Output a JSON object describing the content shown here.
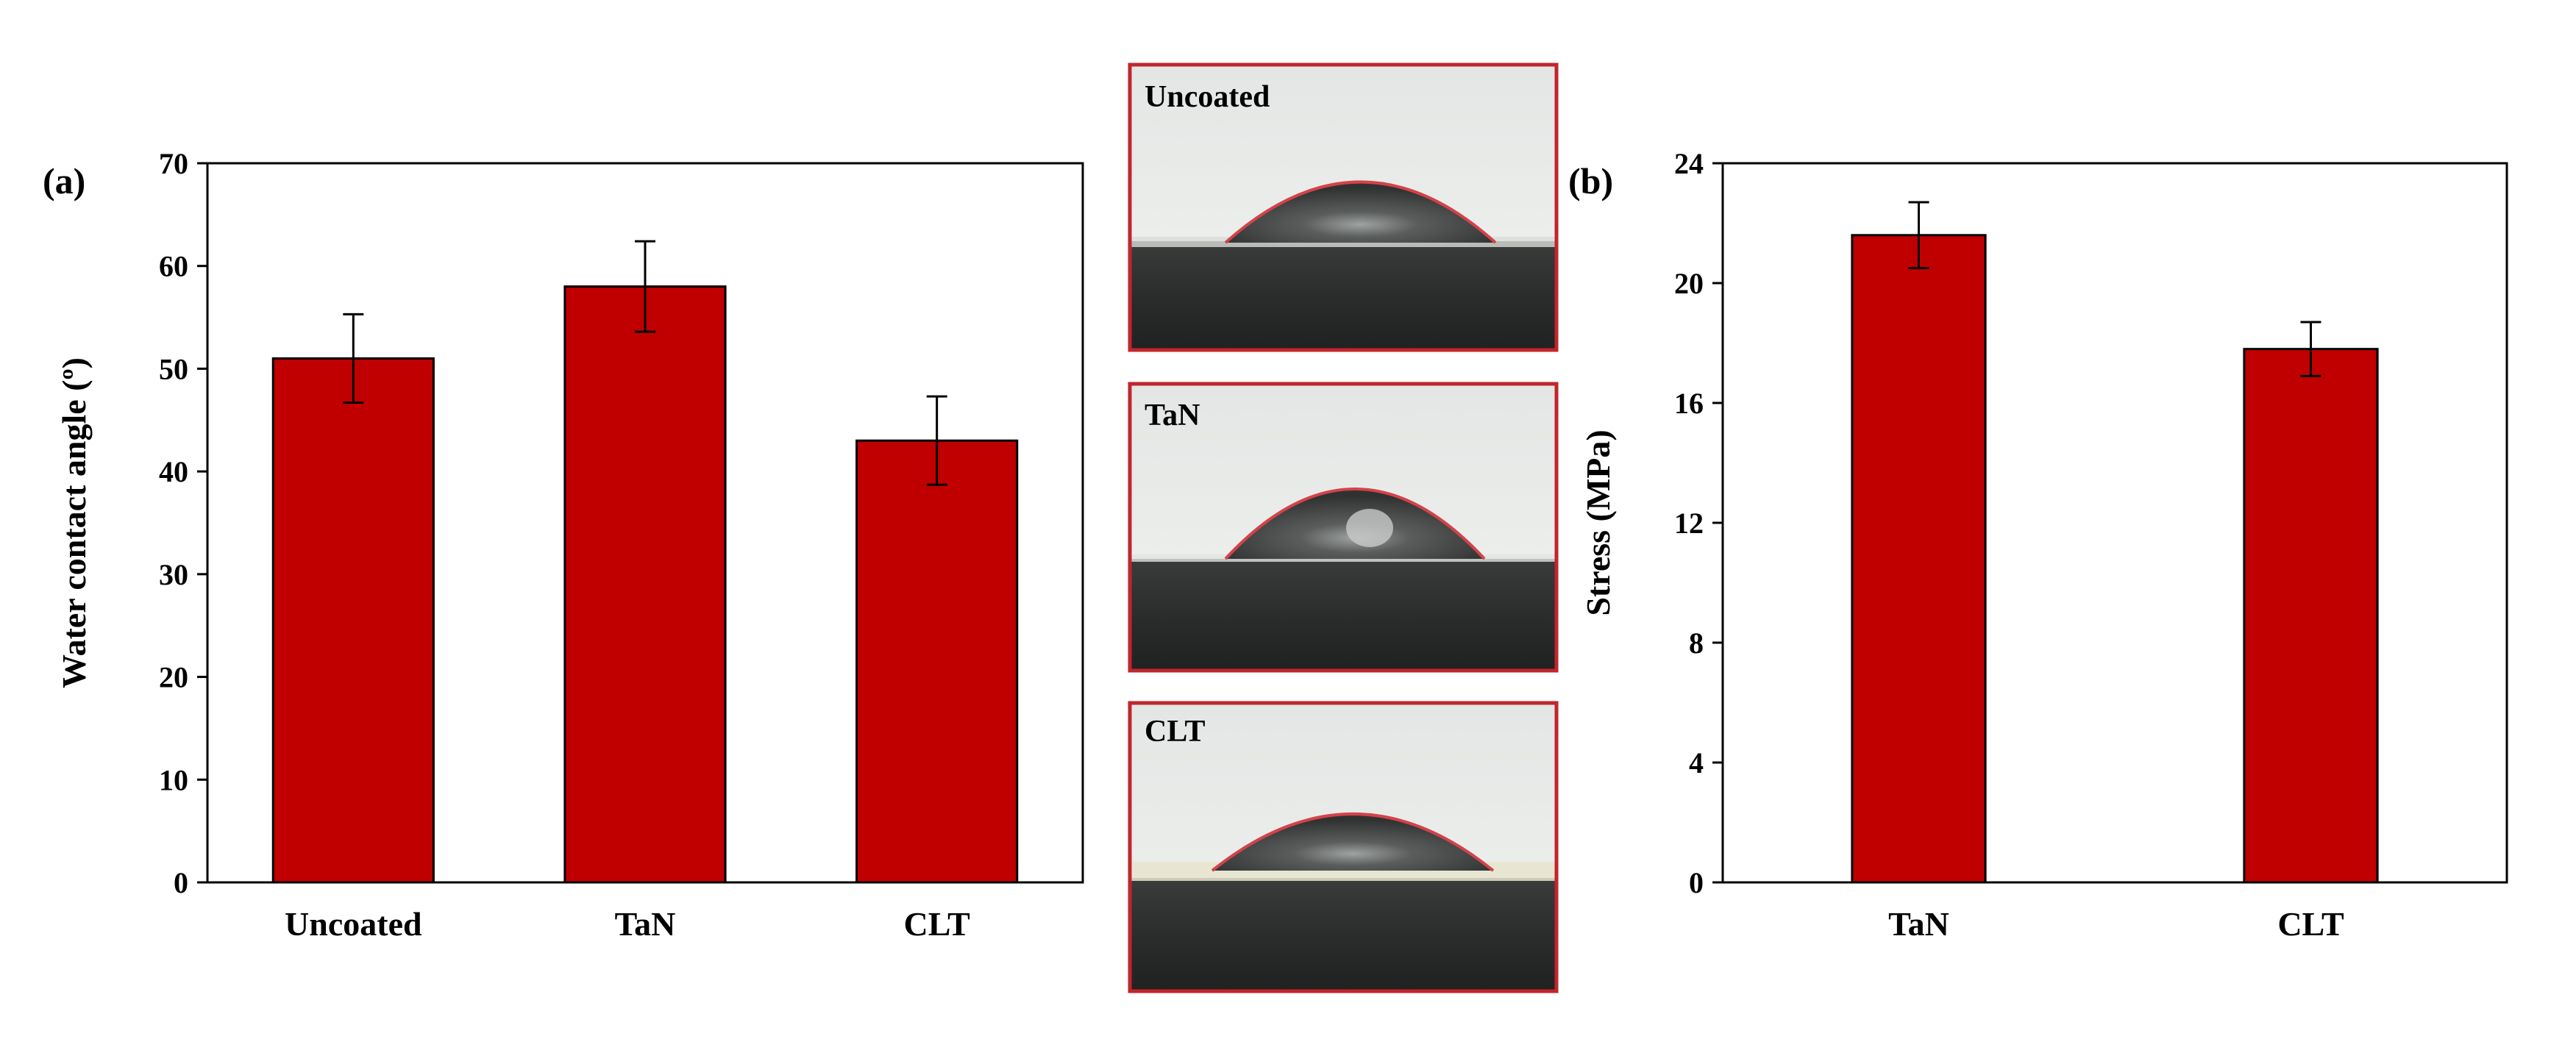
{
  "colors": {
    "bar": "#c00000",
    "bar_stroke": "#000000",
    "photo_frame": "#c0262c",
    "substrate": "#2b2d2c",
    "droplet_edge": "#d4424a"
  },
  "chart_data": [
    {
      "type": "bar",
      "panel_label": "(a)",
      "title": "",
      "xlabel": "",
      "ylabel": "Water contact angle (º)",
      "categories": [
        "Uncoated",
        "TaN",
        "CLT"
      ],
      "values": [
        51,
        58,
        43
      ],
      "errors": [
        4.3,
        4.4,
        4.3
      ],
      "ylim": [
        0,
        70
      ],
      "yticks": [
        0,
        10,
        20,
        30,
        40,
        50,
        60,
        70
      ],
      "grid": false
    },
    {
      "type": "bar",
      "panel_label": "(b)",
      "title": "",
      "xlabel": "",
      "ylabel": "Stress (MPa)",
      "categories": [
        "TaN",
        "CLT"
      ],
      "values": [
        21.6,
        17.8
      ],
      "errors": [
        1.1,
        0.9
      ],
      "ylim": [
        0,
        24
      ],
      "yticks": [
        0,
        4,
        8,
        12,
        16,
        20,
        24
      ],
      "grid": false
    }
  ],
  "photos": [
    {
      "label": "Uncoated"
    },
    {
      "label": "TaN"
    },
    {
      "label": "CLT"
    }
  ]
}
